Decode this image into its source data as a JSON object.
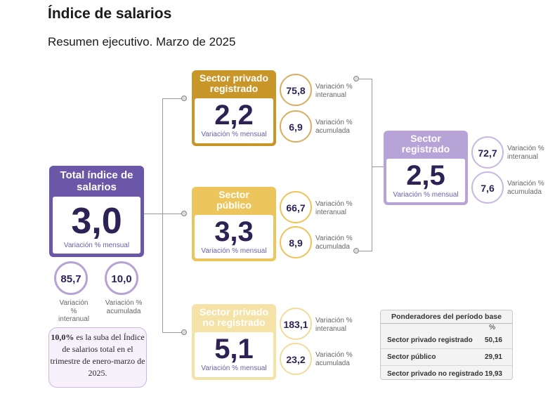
{
  "title": "Índice de salarios",
  "subtitle": "Resumen ejecutivo. Marzo de 2025",
  "total": {
    "heading": "Total índice de salarios",
    "value": "3,0",
    "caption": "Variación % mensual",
    "interanual": "85,7",
    "interanual_label": "Variación % interanual",
    "acumulada": "10,0",
    "acumulada_label": "Variación % acumulada",
    "color": "#6a57a8"
  },
  "privado_registrado": {
    "heading": "Sector privado registrado",
    "value": "2,2",
    "caption": "Variación % mensual",
    "interanual": "75,8",
    "interanual_label": "Variación % interanual",
    "acumulada": "6,9",
    "acumulada_label": "Variación % acumulada",
    "color": "#c9962a"
  },
  "publico": {
    "heading": "Sector público",
    "value": "3,3",
    "caption": "Variación % mensual",
    "interanual": "66,7",
    "interanual_label": "Variación % interanual",
    "acumulada": "8,9",
    "acumulada_label": "Variación % acumulada",
    "color": "#edc55d"
  },
  "no_registrado": {
    "heading": "Sector privado no registrado",
    "value": "5,1",
    "caption": "Variación % mensual",
    "interanual": "183,1",
    "interanual_label": "Variación % interanual",
    "acumulada": "23,2",
    "acumulada_label": "Variación % acumulada",
    "color": "#f5e2a6"
  },
  "registrado": {
    "heading": "Sector registrado",
    "value": "2,5",
    "caption": "Variación % mensual",
    "interanual": "72,7",
    "interanual_label": "Variación % interanual",
    "acumulada": "7,6",
    "acumulada_label": "Variación % acumulada",
    "color": "#b7a3d6"
  },
  "note": {
    "highlight": "10,0%",
    "text": " es la suba del Índice de salarios total en el trimestre de enero-marzo de 2025."
  },
  "weights": {
    "header": "Ponderadores del período base",
    "unit": "%",
    "rows": [
      {
        "label": "Sector privado registrado",
        "value": "50,16"
      },
      {
        "label": "Sector público",
        "value": "29,91"
      },
      {
        "label": "Sector privado no registrado",
        "value": "19,93"
      }
    ]
  }
}
